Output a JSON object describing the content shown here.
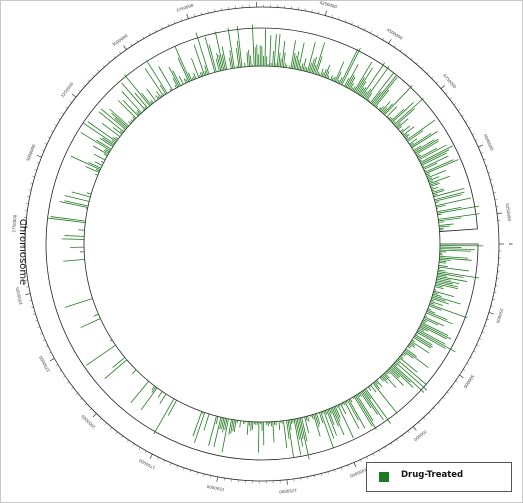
{
  "chart_data": {
    "type": "circular-bar",
    "ring_label": "Chromosome",
    "legend": [
      {
        "label": "Drug-Treated",
        "color": "#1e7a1e"
      }
    ],
    "bar_color": "#1e7a1e",
    "axis_labels": [
      "0",
      "250000",
      "500000",
      "750000",
      "1000000",
      "1250000",
      "1500000",
      "1750000",
      "2000000",
      "2250000",
      "2500000",
      "2750000",
      "3000000",
      "3250000",
      "3500000",
      "3750000",
      "4000000",
      "4250000",
      "4500000",
      "4750000",
      "5000000",
      "5250000"
    ],
    "axis_max": 5300000,
    "bins": 720
  }
}
